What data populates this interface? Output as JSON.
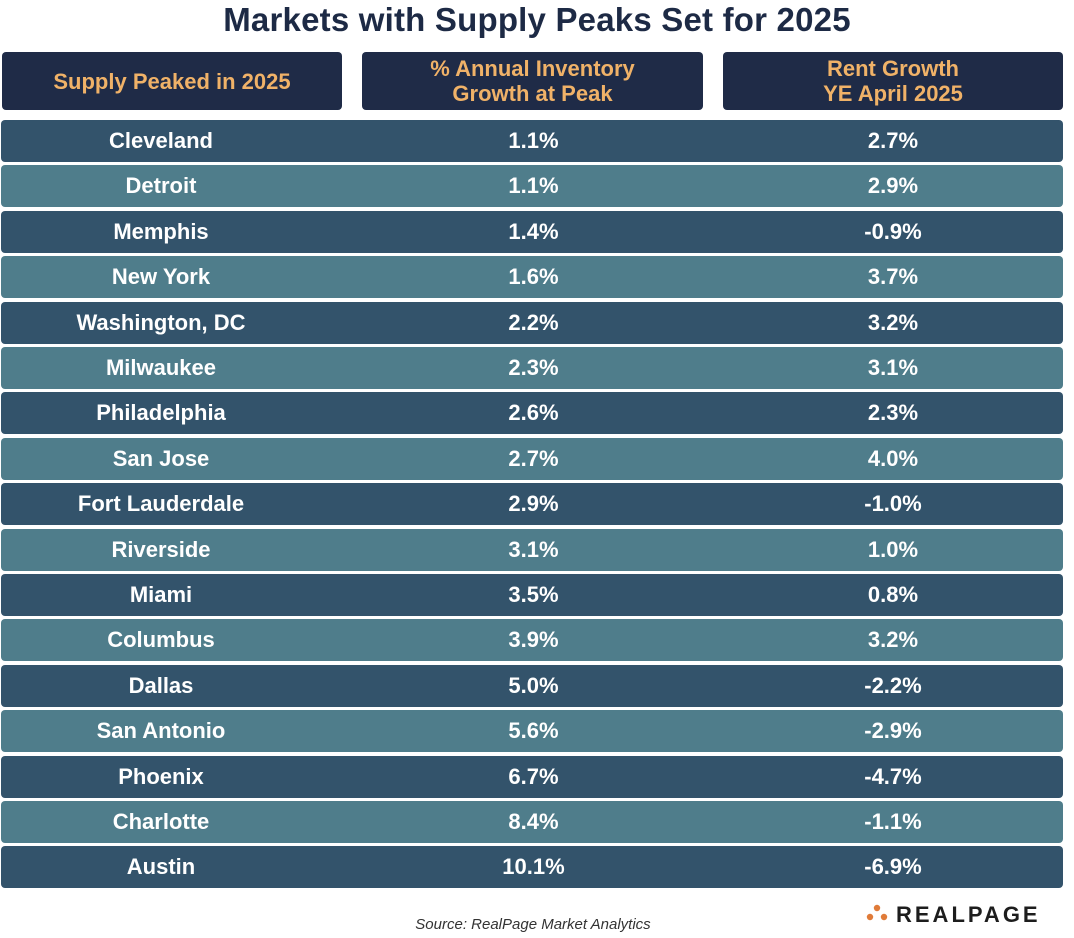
{
  "title": "Markets with Supply Peaks Set for 2025",
  "columns": [
    "Supply Peaked in 2025",
    "% Annual Inventory\nGrowth at Peak",
    "Rent Growth\nYE April 2025"
  ],
  "colors": {
    "title": "#1d2a45",
    "header_bg": "#1f2b47",
    "header_text": "#f0b268",
    "row_dark": "#33536b",
    "row_light": "#4f7d8b",
    "logo_accent": "#e07b39"
  },
  "chart_data": {
    "type": "table",
    "title": "Markets with Supply Peaks Set for 2025",
    "columns": [
      "Supply Peaked in 2025",
      "% Annual Inventory Growth at Peak",
      "Rent Growth YE April 2025"
    ],
    "rows": [
      [
        "Cleveland",
        "1.1%",
        "2.7%"
      ],
      [
        "Detroit",
        "1.1%",
        "2.9%"
      ],
      [
        "Memphis",
        "1.4%",
        "-0.9%"
      ],
      [
        "New York",
        "1.6%",
        "3.7%"
      ],
      [
        "Washington, DC",
        "2.2%",
        "3.2%"
      ],
      [
        "Milwaukee",
        "2.3%",
        "3.1%"
      ],
      [
        "Philadelphia",
        "2.6%",
        "2.3%"
      ],
      [
        "San Jose",
        "2.7%",
        "4.0%"
      ],
      [
        "Fort Lauderdale",
        "2.9%",
        "-1.0%"
      ],
      [
        "Riverside",
        "3.1%",
        "1.0%"
      ],
      [
        "Miami",
        "3.5%",
        "0.8%"
      ],
      [
        "Columbus",
        "3.9%",
        "3.2%"
      ],
      [
        "Dallas",
        "5.0%",
        "-2.2%"
      ],
      [
        "San Antonio",
        "5.6%",
        "-2.9%"
      ],
      [
        "Phoenix",
        "6.7%",
        "-4.7%"
      ],
      [
        "Charlotte",
        "8.4%",
        "-1.1%"
      ],
      [
        "Austin",
        "10.1%",
        "-6.9%"
      ]
    ]
  },
  "source": "Source: RealPage Market Analytics",
  "logo": {
    "text": "REALPAGE",
    "icon": "realpage-dots-icon"
  }
}
